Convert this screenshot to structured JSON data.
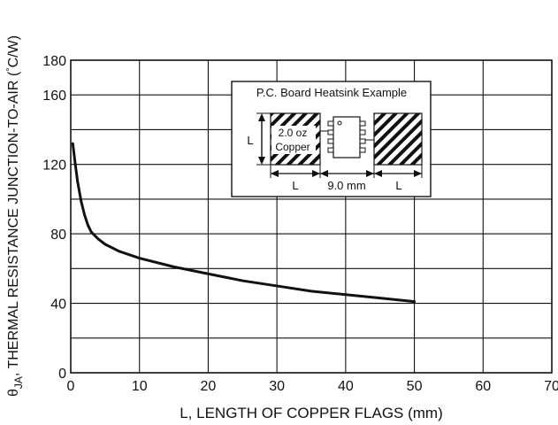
{
  "chart_data": {
    "type": "line",
    "xlabel": "L, LENGTH OF COPPER FLAGS (mm)",
    "ylabel_parts": [
      "θ",
      "JA",
      ", THERMAL RESISTANCE JUNCTION-TO-AIR (",
      "°",
      "C/W)"
    ],
    "xlim": [
      0,
      70
    ],
    "ylim": [
      0,
      180
    ],
    "x_ticks": [
      "0",
      "10",
      "20",
      "30",
      "40",
      "50",
      "60",
      "70"
    ],
    "y_ticks": [
      "0",
      "40",
      "80",
      "120",
      "160",
      "180"
    ],
    "grid": true,
    "series": [
      {
        "x": [
          0.3,
          0.6,
          1,
          1.5,
          2,
          2.5,
          3,
          4,
          5,
          7,
          10,
          15,
          20,
          25,
          30,
          35,
          40,
          45,
          50
        ],
        "y": [
          132,
          122,
          110,
          99,
          91,
          85,
          81,
          77,
          74,
          70,
          66,
          61,
          57,
          53,
          50,
          47,
          45,
          43,
          41
        ]
      }
    ],
    "inset": {
      "title": "P.C. Board Heatsink Example",
      "copper_label_1": "2.0 oz",
      "copper_label_2": "Copper",
      "dim_L": "L",
      "dim_gap": "9.0 mm"
    }
  }
}
